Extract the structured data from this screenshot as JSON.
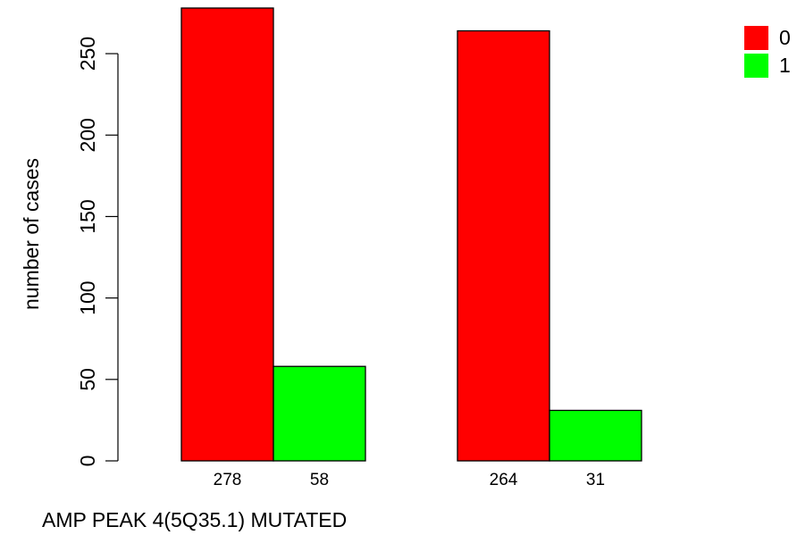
{
  "chart_data": {
    "type": "bar",
    "groups": [
      {
        "values": [
          278,
          58
        ],
        "labels": [
          "278",
          "58"
        ]
      },
      {
        "values": [
          264,
          31
        ],
        "labels": [
          "264",
          "31"
        ]
      }
    ],
    "series": [
      {
        "name": "0",
        "color": "#ff0000"
      },
      {
        "name": "1",
        "color": "#00ff00"
      }
    ],
    "ylabel": "number of cases",
    "xlabel": "AMP PEAK  4(5Q35.1) MUTATED",
    "ylim": [
      0,
      278
    ],
    "yticks": [
      0,
      50,
      100,
      150,
      200,
      250
    ],
    "legend_position": "top-right",
    "grid": false
  }
}
